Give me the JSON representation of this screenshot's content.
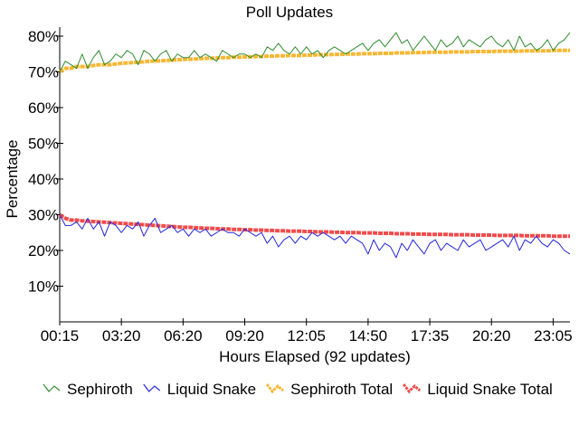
{
  "chart_data": {
    "type": "line",
    "title": "Poll Updates",
    "xlabel": "Hours Elapsed (92 updates)",
    "ylabel": "Percentage",
    "ylim": [
      0,
      80
    ],
    "ytick_values": [
      10,
      20,
      30,
      40,
      50,
      60,
      70,
      80
    ],
    "ytick_labels": [
      "10%",
      "20%",
      "30%",
      "40%",
      "50%",
      "60%",
      "70%",
      "80%"
    ],
    "xtick_labels": [
      "00:15",
      "03:20",
      "06:20",
      "09:20",
      "12:05",
      "14:50",
      "17:35",
      "20:20",
      "23:05"
    ],
    "xtick_indices": [
      0,
      11,
      22,
      33,
      44,
      55,
      66,
      77,
      88
    ],
    "n_points": 92,
    "grid": false,
    "legend_position": "bottom",
    "series": [
      {
        "name": "Sephiroth",
        "color": "#2e8b2e",
        "style": "thin",
        "values": [
          70,
          73,
          72,
          71,
          75,
          71,
          74,
          76,
          72,
          73,
          75,
          74,
          76,
          75,
          72,
          76,
          75,
          73,
          75,
          76,
          73,
          75,
          74,
          74,
          76,
          74,
          75,
          74,
          73,
          76,
          75,
          74,
          75,
          75,
          74,
          75,
          74,
          77,
          76,
          78,
          76,
          75,
          77,
          75,
          77,
          75,
          76,
          74,
          76,
          77,
          76,
          75,
          76,
          77,
          78,
          76,
          78,
          79,
          77,
          79,
          81,
          78,
          79,
          76,
          78,
          80,
          78,
          76,
          79,
          77,
          78,
          80,
          77,
          79,
          78,
          77,
          79,
          80,
          78,
          77,
          79,
          76,
          80,
          77,
          78,
          76,
          77,
          79,
          76,
          78,
          79,
          81
        ]
      },
      {
        "name": "Liquid Snake",
        "color": "#2424d8",
        "style": "thin",
        "values": [
          30,
          27,
          27,
          28,
          26,
          29,
          26,
          28,
          24,
          28,
          27,
          25,
          27,
          26,
          28,
          24,
          27,
          29,
          25,
          26,
          27,
          25,
          26,
          24,
          26,
          25,
          26,
          24,
          25,
          26,
          25,
          25,
          24,
          26,
          25,
          24,
          25,
          22,
          24,
          21,
          23,
          24,
          22,
          24,
          23,
          25,
          24,
          25,
          24,
          23,
          24,
          22,
          24,
          23,
          22,
          19,
          23,
          20,
          22,
          21,
          18,
          22,
          20,
          23,
          21,
          19,
          22,
          23,
          20,
          22,
          21,
          20,
          23,
          21,
          22,
          23,
          20,
          21,
          22,
          23,
          21,
          24,
          20,
          23,
          22,
          24,
          22,
          21,
          23,
          22,
          20,
          19
        ]
      },
      {
        "name": "Sephiroth Total",
        "color": "#f7b733",
        "style": "thick",
        "values": [
          70,
          71,
          71,
          71.5,
          71.5,
          71.5,
          71.8,
          72,
          72,
          72,
          72.2,
          72.4,
          72.5,
          72.6,
          72.7,
          72.8,
          73,
          73,
          73.1,
          73.2,
          73.3,
          73.4,
          73.5,
          73.5,
          73.6,
          73.7,
          73.8,
          73.8,
          73.9,
          74,
          74,
          74.1,
          74.1,
          74.2,
          74.2,
          74.3,
          74.3,
          74.4,
          74.4,
          74.5,
          74.5,
          74.6,
          74.6,
          74.6,
          74.7,
          74.7,
          74.8,
          74.8,
          74.8,
          74.9,
          74.9,
          75,
          75,
          75,
          75.1,
          75.1,
          75.1,
          75.2,
          75.2,
          75.2,
          75.3,
          75.3,
          75.3,
          75.4,
          75.4,
          75.4,
          75.5,
          75.5,
          75.5,
          75.5,
          75.6,
          75.6,
          75.6,
          75.6,
          75.7,
          75.7,
          75.7,
          75.7,
          75.8,
          75.8,
          75.8,
          75.8,
          75.8,
          75.9,
          75.9,
          75.9,
          75.9,
          75.9,
          76,
          76,
          76,
          76
        ]
      },
      {
        "name": "Liquid Snake Total",
        "color": "#f04b4b",
        "style": "thick",
        "values": [
          30,
          29,
          28.5,
          28.5,
          28.3,
          28.2,
          28.1,
          28,
          27.9,
          27.8,
          27.7,
          27.6,
          27.5,
          27.4,
          27.3,
          27.2,
          27.1,
          27,
          26.9,
          26.8,
          26.7,
          26.6,
          26.5,
          26.5,
          26.4,
          26.3,
          26.2,
          26.2,
          26.1,
          26,
          26,
          25.9,
          25.9,
          25.8,
          25.8,
          25.7,
          25.7,
          25.6,
          25.6,
          25.5,
          25.5,
          25.4,
          25.4,
          25.4,
          25.3,
          25.3,
          25.2,
          25.2,
          25.2,
          25.1,
          25.1,
          25,
          25,
          25,
          24.9,
          24.9,
          24.9,
          24.8,
          24.8,
          24.8,
          24.7,
          24.7,
          24.7,
          24.6,
          24.6,
          24.6,
          24.5,
          24.5,
          24.5,
          24.5,
          24.4,
          24.4,
          24.4,
          24.4,
          24.3,
          24.3,
          24.3,
          24.3,
          24.2,
          24.2,
          24.2,
          24.2,
          24.2,
          24.1,
          24.1,
          24.1,
          24.1,
          24.1,
          24,
          24,
          24,
          24
        ]
      }
    ]
  }
}
